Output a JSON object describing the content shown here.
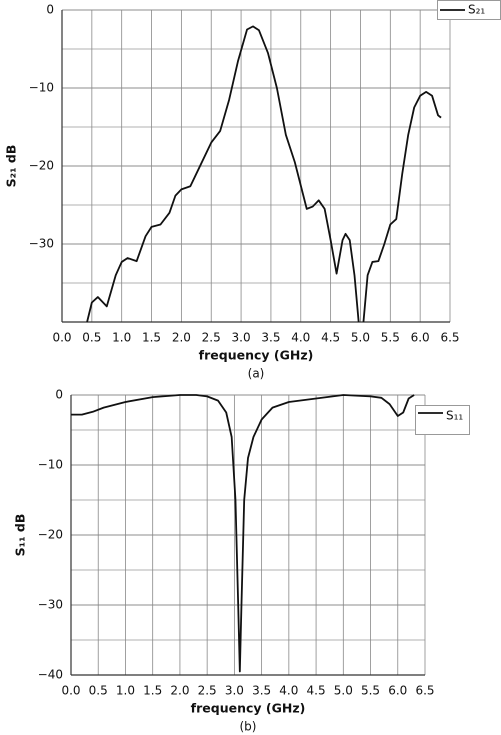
{
  "chart_data": [
    {
      "type": "line",
      "caption": "(a)",
      "xlabel": "frequency (GHz)",
      "ylabel": "S₂₁ dB",
      "xlim": [
        0,
        6.5
      ],
      "ylim": [
        -40,
        0
      ],
      "xticks": [
        {
          "value": 0,
          "label": "0.0"
        },
        0.5,
        {
          "value": 1,
          "label": "1.0"
        },
        1.5,
        {
          "value": 2,
          "label": "2.0"
        },
        2.5,
        {
          "value": 3,
          "label": "3.0"
        },
        3.5,
        {
          "value": 4,
          "label": "4.0"
        },
        4.5,
        {
          "value": 5,
          "label": "5.0"
        },
        5.5,
        {
          "value": 6,
          "label": "6.0"
        },
        6.5
      ],
      "yticks": [
        0,
        {
          "value": -10,
          "label": "−10"
        },
        {
          "value": -20,
          "label": "−20"
        },
        {
          "value": -30,
          "label": "−30"
        }
      ],
      "yminor": [
        -5,
        -15,
        -25,
        -35
      ],
      "grid": true,
      "legend": "upper right",
      "x": [
        0.42,
        0.5,
        0.6,
        0.75,
        0.9,
        1.0,
        1.1,
        1.25,
        1.4,
        1.5,
        1.65,
        1.8,
        1.9,
        2.0,
        2.15,
        2.3,
        2.5,
        2.65,
        2.8,
        2.95,
        3.1,
        3.2,
        3.3,
        3.45,
        3.6,
        3.75,
        3.9,
        4.0,
        4.1,
        4.2,
        4.3,
        4.4,
        4.5,
        4.6,
        4.7,
        4.75,
        4.82,
        4.9,
        4.97,
        5.0,
        5.05,
        5.12,
        5.2,
        5.3,
        5.4,
        5.5,
        5.6,
        5.7,
        5.8,
        5.9,
        6.0,
        6.1,
        6.2,
        6.3,
        6.35
      ],
      "series": [
        {
          "name": "S₂₁",
          "color": "#111111",
          "values": [
            -40,
            -37.5,
            -36.8,
            -38,
            -34,
            -32.3,
            -31.8,
            -32.2,
            -29,
            -27.8,
            -27.5,
            -26,
            -23.8,
            -23,
            -22.6,
            -20.2,
            -17,
            -15.5,
            -11.5,
            -6.5,
            -2.5,
            -2.1,
            -2.6,
            -5.5,
            -10,
            -16,
            -19.5,
            -22.5,
            -25.5,
            -25.2,
            -24.4,
            -25.5,
            -29.5,
            -33.8,
            -29.5,
            -28.7,
            -29.5,
            -34,
            -40,
            null,
            -40,
            -34,
            -32.3,
            -32.2,
            -30,
            -27.5,
            -26.8,
            -21,
            -16,
            -12.5,
            -11,
            -10.5,
            -11,
            -13.5,
            -13.8
          ]
        }
      ]
    },
    {
      "type": "line",
      "caption": "(b)",
      "xlabel": "frequency (GHz)",
      "ylabel": "S₁₁ dB",
      "xlim": [
        0,
        6.5
      ],
      "ylim": [
        -40,
        0
      ],
      "xticks": [
        {
          "value": 0,
          "label": "0.0"
        },
        0.5,
        {
          "value": 1,
          "label": "1.0"
        },
        1.5,
        {
          "value": 2,
          "label": "2.0"
        },
        2.5,
        {
          "value": 3,
          "label": "3.0"
        },
        3.5,
        {
          "value": 4,
          "label": "4.0"
        },
        4.5,
        {
          "value": 5,
          "label": "5.0"
        },
        5.5,
        {
          "value": 6,
          "label": "6.0"
        },
        6.5
      ],
      "yticks": [
        0,
        {
          "value": -10,
          "label": "−10"
        },
        {
          "value": -20,
          "label": "−20"
        },
        {
          "value": -30,
          "label": "−30"
        },
        {
          "value": -40,
          "label": "−40"
        }
      ],
      "yminor": [
        -5,
        -15,
        -25,
        -35
      ],
      "grid": true,
      "legend": "right",
      "x": [
        0,
        0.2,
        0.4,
        0.6,
        1.0,
        1.5,
        2.0,
        2.3,
        2.5,
        2.7,
        2.85,
        2.95,
        3.02,
        3.07,
        3.1,
        3.13,
        3.18,
        3.25,
        3.35,
        3.5,
        3.7,
        4.0,
        4.5,
        5.0,
        5.5,
        5.7,
        5.85,
        6.0,
        6.1,
        6.2,
        6.3
      ],
      "series": [
        {
          "name": "S₁₁",
          "color": "#111111",
          "values": [
            -2.8,
            -2.8,
            -2.4,
            -1.8,
            -1,
            -0.3,
            0,
            0,
            -0.2,
            -0.8,
            -2.5,
            -6,
            -15,
            -30,
            -39.5,
            -30,
            -15,
            -9,
            -6,
            -3.5,
            -1.8,
            -1,
            -0.5,
            0,
            -0.2,
            -0.4,
            -1.3,
            -3,
            -2.5,
            -0.5,
            0
          ]
        }
      ]
    }
  ]
}
